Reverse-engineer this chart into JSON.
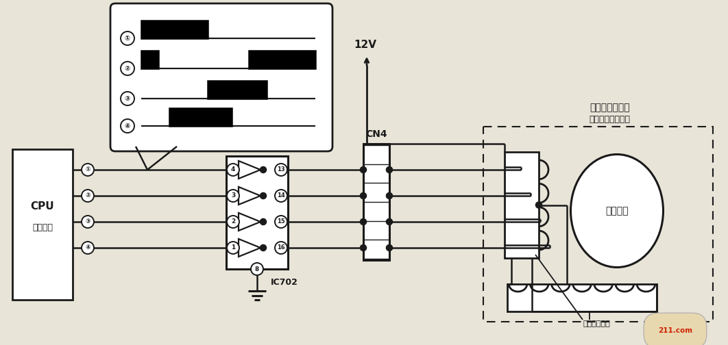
{
  "bg_color": "#e8e4d8",
  "line_color": "#1a1a1a",
  "cpu_label1": "CPU",
  "cpu_label2": "微处理器",
  "cn4_label": "CN4",
  "v12_label": "12V",
  "ic702_label": "IC702",
  "motor_label1": "导风板驱动电机",
  "motor_label2": "（自动摆动电机）",
  "rotor_label": "电机转子",
  "stator_label": "电机定子绕组",
  "pin_in": [
    "4",
    "3",
    "2",
    "1"
  ],
  "pin_out": [
    "13",
    "14",
    "15",
    "16"
  ],
  "cpu_pins": [
    "①",
    "②",
    "③",
    "④"
  ],
  "wf_labels": [
    "①",
    "②",
    "③",
    "④"
  ],
  "wf_pulses": [
    [
      [
        0.0,
        0.38
      ]
    ],
    [
      [
        0.0,
        0.1
      ],
      [
        0.62,
        1.0
      ]
    ],
    [
      [
        0.38,
        0.72
      ]
    ],
    [
      [
        0.16,
        0.52
      ]
    ]
  ]
}
